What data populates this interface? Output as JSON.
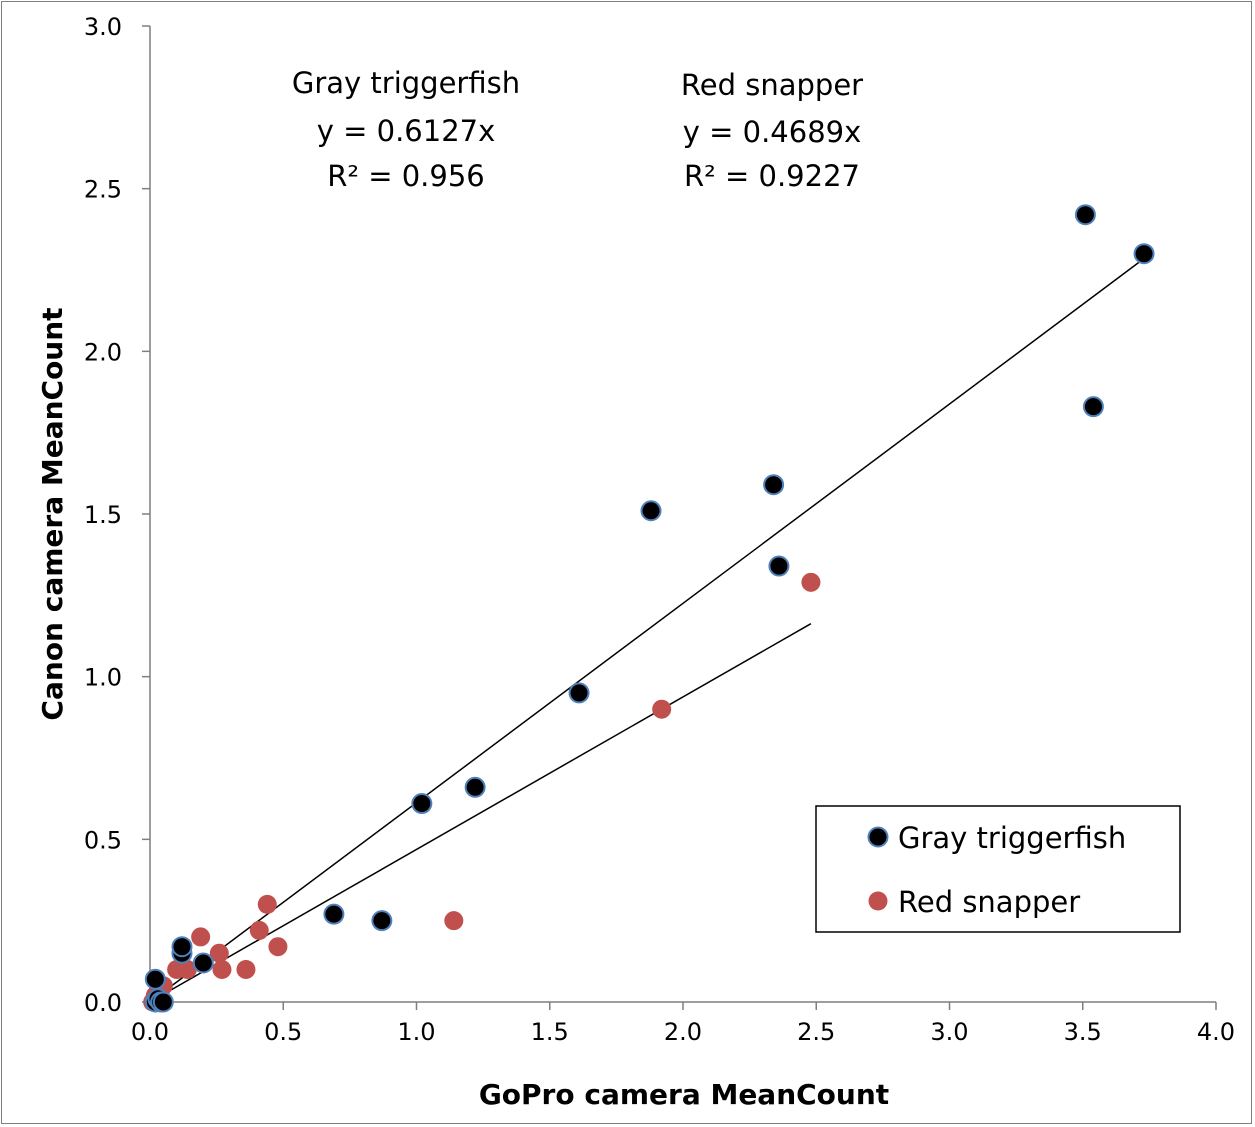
{
  "chart_data": {
    "type": "scatter",
    "title": "",
    "xlabel": "GoPro camera MeanCount",
    "ylabel": "Canon camera MeanCount",
    "xlim": [
      0,
      4
    ],
    "ylim": [
      0,
      3
    ],
    "x_ticks": [
      "0.0",
      "0.5",
      "1.0",
      "1.5",
      "2.0",
      "2.5",
      "3.0",
      "3.5",
      "4.0"
    ],
    "y_ticks": [
      "0.0",
      "0.5",
      "1.0",
      "1.5",
      "2.0",
      "2.5",
      "3.0"
    ],
    "grid": false,
    "legend_position": "bottom-right",
    "series": [
      {
        "name": "Gray triggerfish",
        "color": "#000000",
        "edge_color": "#4f81bd",
        "points": [
          [
            0.02,
            0.07
          ],
          [
            0.02,
            0.0
          ],
          [
            0.03,
            0.01
          ],
          [
            0.04,
            0.0
          ],
          [
            0.05,
            0.0
          ],
          [
            0.12,
            0.15
          ],
          [
            0.12,
            0.17
          ],
          [
            0.2,
            0.12
          ],
          [
            0.69,
            0.27
          ],
          [
            0.87,
            0.25
          ],
          [
            1.02,
            0.61
          ],
          [
            1.22,
            0.66
          ],
          [
            1.61,
            0.95
          ],
          [
            1.88,
            1.51
          ],
          [
            2.34,
            1.59
          ],
          [
            2.36,
            1.34
          ],
          [
            3.51,
            2.42
          ],
          [
            3.54,
            1.83
          ],
          [
            3.73,
            2.3
          ]
        ],
        "trendline": {
          "slope": 0.6127,
          "x_range": [
            0,
            3.73
          ]
        },
        "annotation": {
          "name": "Gray triggerfish",
          "equation": "y = 0.6127x",
          "r2": "R² = 0.956"
        }
      },
      {
        "name": "Red snapper",
        "color": "#c0504d",
        "points": [
          [
            0.01,
            0.0
          ],
          [
            0.02,
            0.02
          ],
          [
            0.03,
            0.03
          ],
          [
            0.05,
            0.05
          ],
          [
            0.1,
            0.1
          ],
          [
            0.14,
            0.1
          ],
          [
            0.19,
            0.2
          ],
          [
            0.26,
            0.15
          ],
          [
            0.27,
            0.1
          ],
          [
            0.36,
            0.1
          ],
          [
            0.41,
            0.22
          ],
          [
            0.44,
            0.3
          ],
          [
            0.48,
            0.17
          ],
          [
            1.14,
            0.25
          ],
          [
            1.92,
            0.9
          ],
          [
            2.48,
            1.29
          ]
        ],
        "trendline": {
          "slope": 0.4689,
          "x_range": [
            0,
            2.48
          ]
        },
        "annotation": {
          "name": "Red snapper",
          "equation": "y = 0.4689x",
          "r2": "R² = 0.9227"
        }
      }
    ]
  }
}
